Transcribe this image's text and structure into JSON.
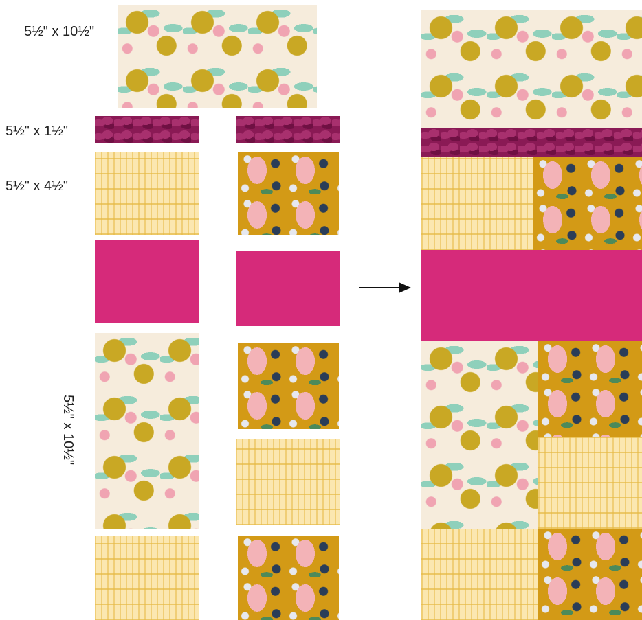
{
  "labels": {
    "top_rect": "5½\" x 10½\"",
    "strip": "5½\" x 1½\"",
    "square": "5½\" x 4½\"",
    "tall_rect": "5½\" x 10½\""
  },
  "colors": {
    "floral_bg": "#f6ecdc",
    "plum": "#8a1a55",
    "book_yellow": "#fbe7b0",
    "squirrel_gold": "#d39a16",
    "poster_pink": "#d62a7a"
  },
  "icons": {
    "arrow": "right-arrow-icon"
  }
}
